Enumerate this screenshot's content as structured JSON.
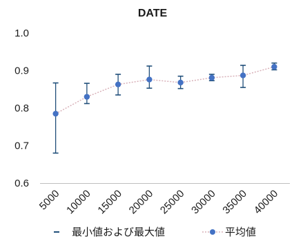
{
  "chart_data": {
    "type": "line",
    "title": "DATE",
    "xlabel": "",
    "ylabel": "",
    "categories": [
      "5000",
      "10000",
      "15000",
      "20000",
      "25000",
      "30000",
      "35000",
      "40000"
    ],
    "ylim": [
      0.6,
      1.0
    ],
    "yticks": [
      "0.6",
      "0.7",
      "0.8",
      "0.9",
      "1.0"
    ],
    "grid": false,
    "legend_position": "bottom",
    "series": [
      {
        "name": "平均値",
        "values": [
          0.785,
          0.83,
          0.863,
          0.876,
          0.868,
          0.881,
          0.887,
          0.91
        ],
        "color": "#4472c4",
        "line_color": "#d8b0b8",
        "line_style": "dotted"
      },
      {
        "name": "最小値および最大値",
        "min": [
          0.68,
          0.812,
          0.835,
          0.853,
          0.852,
          0.873,
          0.855,
          0.902
        ],
        "max": [
          0.867,
          0.866,
          0.89,
          0.912,
          0.885,
          0.89,
          0.914,
          0.92
        ],
        "color": "#1f4e79"
      }
    ]
  },
  "colors": {
    "axis": "#bfbfbf",
    "text": "#1a1a1a",
    "background": "#ffffff"
  }
}
